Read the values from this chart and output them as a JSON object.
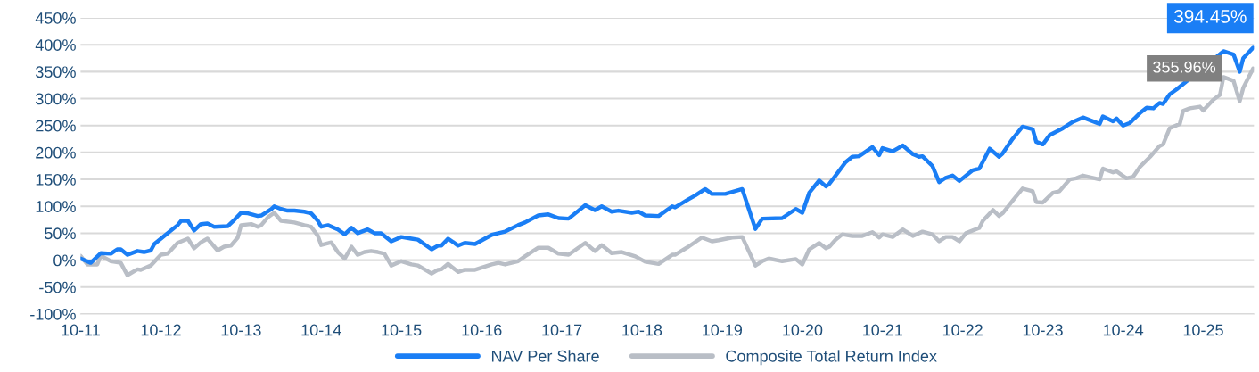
{
  "chart_data": {
    "type": "line",
    "series": [
      {
        "name": "NAV Per Share",
        "color": "#1a7ef5",
        "x": [
          "2011-10-01",
          "2011-11-16",
          "2012-01-01",
          "2012-02-16",
          "2012-03-16",
          "2012-04-01",
          "2012-05-01",
          "2012-06-16",
          "2012-07-16",
          "2012-08-16",
          "2012-09-01",
          "2012-10-16",
          "2012-12-16",
          "2013-01-01",
          "2013-02-01",
          "2013-03-01",
          "2013-04-01",
          "2013-05-01",
          "2013-06-01",
          "2013-08-01",
          "2013-09-01",
          "2013-10-01",
          "2013-11-01",
          "2013-12-16",
          "2014-01-01",
          "2014-02-16",
          "2014-03-01",
          "2014-04-01",
          "2014-05-01",
          "2014-06-01",
          "2014-07-16",
          "2014-08-16",
          "2014-09-16",
          "2014-10-01",
          "2014-11-01",
          "2014-12-16",
          "2015-01-16",
          "2015-02-16",
          "2015-03-16",
          "2015-05-01",
          "2015-06-01",
          "2015-07-01",
          "2015-08-16",
          "2015-10-01",
          "2015-11-16",
          "2015-12-16",
          "2016-02-16",
          "2016-03-16",
          "2016-04-01",
          "2016-05-01",
          "2016-06-16",
          "2016-07-16",
          "2016-09-01",
          "2016-11-16",
          "2016-12-16",
          "2017-01-16",
          "2017-03-16",
          "2017-04-16",
          "2017-06-16",
          "2017-08-01",
          "2017-09-16",
          "2017-11-01",
          "2018-01-16",
          "2018-03-01",
          "2018-04-01",
          "2018-05-16",
          "2018-06-16",
          "2018-08-16",
          "2018-09-16",
          "2018-10-16",
          "2018-12-16",
          "2019-02-16",
          "2019-03-01",
          "2019-05-01",
          "2019-06-01",
          "2019-07-16",
          "2019-08-16",
          "2019-10-16",
          "2020-01-01",
          "2020-03-01",
          "2020-04-01",
          "2020-07-01",
          "2020-09-01",
          "2020-10-01",
          "2020-11-01",
          "2020-12-16",
          "2021-01-16",
          "2021-02-01",
          "2021-03-01",
          "2021-04-16",
          "2021-05-16",
          "2021-06-16",
          "2021-08-16",
          "2021-09-16",
          "2021-10-01",
          "2021-11-16",
          "2022-01-01",
          "2022-02-16",
          "2022-03-16",
          "2022-04-01",
          "2022-05-16",
          "2022-06-16",
          "2022-07-16",
          "2022-08-16",
          "2022-09-16",
          "2022-11-16",
          "2022-12-16",
          "2023-02-01",
          "2023-03-16",
          "2023-04-01",
          "2023-05-16",
          "2023-07-01",
          "2023-08-16",
          "2023-09-01",
          "2023-10-01",
          "2023-11-01",
          "2024-01-01",
          "2024-02-16",
          "2024-04-01",
          "2024-06-16",
          "2024-07-01",
          "2024-08-16",
          "2024-09-01",
          "2024-10-01",
          "2024-11-01",
          "2024-12-16",
          "2025-01-16",
          "2025-02-16",
          "2025-03-16",
          "2025-04-01",
          "2025-05-01",
          "2025-06-01",
          "2025-07-16",
          "2025-10-01",
          "2026-01-01",
          "2026-02-16",
          "2026-03-16",
          "2026-04-01",
          "2026-05-16"
        ],
        "values": [
          3,
          -5,
          13,
          12,
          20,
          20,
          10,
          17,
          15,
          18,
          30,
          45,
          65,
          73,
          73,
          55,
          67,
          68,
          62,
          63,
          75,
          88,
          87,
          82,
          83,
          95,
          100,
          95,
          92,
          92,
          90,
          87,
          73,
          62,
          65,
          57,
          48,
          60,
          50,
          57,
          50,
          50,
          35,
          43,
          40,
          38,
          20,
          27,
          27,
          40,
          27,
          32,
          30,
          47,
          50,
          53,
          65,
          70,
          83,
          85,
          78,
          77,
          102,
          93,
          100,
          90,
          92,
          88,
          90,
          83,
          82,
          100,
          98,
          113,
          120,
          132,
          123,
          123,
          132,
          58,
          77,
          78,
          95,
          88,
          125,
          148,
          137,
          142,
          157,
          182,
          192,
          193,
          210,
          195,
          208,
          202,
          213,
          197,
          192,
          193,
          175,
          145,
          153,
          157,
          147,
          167,
          170,
          207,
          192,
          198,
          225,
          248,
          243,
          220,
          215,
          232,
          245,
          257,
          265,
          253,
          267,
          258,
          263,
          250,
          255,
          273,
          283,
          282,
          292,
          290,
          308,
          317,
          null,
          null,
          388,
          382,
          350,
          375,
          394.45
        ]
      },
      {
        "name": "Composite Total Return Index",
        "color": "#b9bec6",
        "x": [
          "2011-10-01",
          "2011-11-01",
          "2011-12-16",
          "2012-01-01",
          "2012-02-16",
          "2012-04-01",
          "2012-05-01",
          "2012-06-16",
          "2012-07-01",
          "2012-08-16",
          "2012-10-01",
          "2012-11-01",
          "2012-12-16",
          "2013-02-01",
          "2013-03-01",
          "2013-04-01",
          "2013-05-01",
          "2013-06-16",
          "2013-07-16",
          "2013-08-16",
          "2013-09-16",
          "2013-10-01",
          "2013-11-16",
          "2013-12-16",
          "2014-01-01",
          "2014-02-01",
          "2014-03-01",
          "2014-04-01",
          "2014-06-01",
          "2014-07-16",
          "2014-08-16",
          "2014-09-16",
          "2014-10-01",
          "2014-11-16",
          "2014-12-16",
          "2015-01-16",
          "2015-02-16",
          "2015-03-16",
          "2015-04-16",
          "2015-05-16",
          "2015-06-16",
          "2015-07-16",
          "2015-08-16",
          "2015-10-01",
          "2015-11-16",
          "2015-12-16",
          "2016-02-16",
          "2016-03-16",
          "2016-04-01",
          "2016-05-01",
          "2016-06-16",
          "2016-07-16",
          "2016-09-01",
          "2016-11-16",
          "2016-12-16",
          "2017-01-16",
          "2017-03-16",
          "2017-04-16",
          "2017-06-16",
          "2017-08-01",
          "2017-09-16",
          "2017-11-01",
          "2018-01-16",
          "2018-03-01",
          "2018-04-01",
          "2018-05-16",
          "2018-07-01",
          "2018-09-01",
          "2018-10-16",
          "2018-12-16",
          "2019-02-16",
          "2019-03-01",
          "2019-05-01",
          "2019-07-01",
          "2019-08-16",
          "2019-09-16",
          "2019-11-16",
          "2020-01-01",
          "2020-03-01",
          "2020-04-01",
          "2020-05-01",
          "2020-07-01",
          "2020-09-01",
          "2020-10-01",
          "2020-11-01",
          "2020-12-16",
          "2021-01-16",
          "2021-02-01",
          "2021-03-01",
          "2021-04-01",
          "2021-05-16",
          "2021-07-01",
          "2021-08-16",
          "2021-09-16",
          "2021-10-01",
          "2021-11-16",
          "2022-01-01",
          "2022-02-16",
          "2022-04-01",
          "2022-05-16",
          "2022-06-16",
          "2022-07-16",
          "2022-08-16",
          "2022-09-16",
          "2022-10-16",
          "2022-12-16",
          "2023-01-01",
          "2023-02-16",
          "2023-03-16",
          "2023-04-01",
          "2023-05-16",
          "2023-07-01",
          "2023-08-16",
          "2023-09-01",
          "2023-10-01",
          "2023-11-16",
          "2023-12-16",
          "2024-02-01",
          "2024-03-01",
          "2024-04-01",
          "2024-06-16",
          "2024-07-01",
          "2024-08-16",
          "2024-09-01",
          "2024-10-16",
          "2024-11-16",
          "2024-12-16",
          "2025-02-01",
          "2025-03-16",
          "2025-04-01",
          "2025-05-01",
          "2025-06-16",
          "2025-07-01",
          "2025-08-01",
          "2025-09-16",
          "2025-10-01",
          "2025-11-16",
          "2025-12-16",
          "2026-01-01",
          "2026-02-16",
          "2026-03-16",
          "2026-04-01",
          "2026-05-16"
        ],
        "values": [
          8,
          -8,
          -8,
          8,
          -2,
          -5,
          -28,
          -17,
          -18,
          -10,
          10,
          12,
          32,
          40,
          22,
          33,
          40,
          18,
          25,
          27,
          42,
          65,
          67,
          62,
          65,
          80,
          88,
          73,
          70,
          65,
          62,
          45,
          28,
          33,
          15,
          3,
          25,
          10,
          15,
          17,
          15,
          12,
          -10,
          -2,
          -8,
          -10,
          -25,
          -18,
          -17,
          -7,
          -22,
          -18,
          -18,
          -8,
          -5,
          -8,
          -2,
          7,
          23,
          23,
          12,
          10,
          32,
          17,
          28,
          13,
          15,
          7,
          -3,
          -7,
          10,
          10,
          25,
          42,
          35,
          37,
          42,
          43,
          -10,
          -2,
          3,
          -2,
          2,
          -8,
          20,
          32,
          22,
          25,
          38,
          48,
          45,
          45,
          52,
          42,
          48,
          43,
          57,
          45,
          53,
          48,
          35,
          43,
          43,
          35,
          50,
          60,
          73,
          93,
          82,
          87,
          110,
          133,
          128,
          108,
          107,
          125,
          128,
          150,
          152,
          157,
          150,
          170,
          163,
          165,
          152,
          155,
          173,
          192,
          212,
          215,
          245,
          253,
          277,
          282,
          285,
          278,
          298,
          307,
          340,
          333,
          295,
          320,
          355.96
        ]
      }
    ],
    "ylim": [
      -100,
      450
    ],
    "yticks": [
      {
        "value": -100,
        "label": "-100%"
      },
      {
        "value": -50,
        "label": "-50%"
      },
      {
        "value": 0,
        "label": "0%"
      },
      {
        "value": 50,
        "label": "50%"
      },
      {
        "value": 100,
        "label": "100%"
      },
      {
        "value": 150,
        "label": "150%"
      },
      {
        "value": 200,
        "label": "200%"
      },
      {
        "value": 250,
        "label": "250%"
      },
      {
        "value": 300,
        "label": "300%"
      },
      {
        "value": 350,
        "label": "350%"
      },
      {
        "value": 400,
        "label": "400%"
      },
      {
        "value": 450,
        "label": "450%"
      }
    ],
    "xlim": [
      "2011-10-01",
      "2026-05-20"
    ],
    "xticks": [
      {
        "value": "2011-10-01",
        "label": "10-11"
      },
      {
        "value": "2012-10-01",
        "label": "10-12"
      },
      {
        "value": "2013-10-01",
        "label": "10-13"
      },
      {
        "value": "2014-10-01",
        "label": "10-14"
      },
      {
        "value": "2015-10-01",
        "label": "10-15"
      },
      {
        "value": "2016-10-01",
        "label": "10-16"
      },
      {
        "value": "2017-10-01",
        "label": "10-17"
      },
      {
        "value": "2018-10-01",
        "label": "10-18"
      },
      {
        "value": "2019-10-01",
        "label": "10-19"
      },
      {
        "value": "2020-10-01",
        "label": "10-20"
      },
      {
        "value": "2021-10-01",
        "label": "10-21"
      },
      {
        "value": "2022-10-01",
        "label": "10-22"
      },
      {
        "value": "2023-10-01",
        "label": "10-23"
      },
      {
        "value": "2024-10-01",
        "label": "10-24"
      },
      {
        "value": "2025-10-01",
        "label": "10-25"
      }
    ],
    "annotations": [
      {
        "text": "394.45%",
        "x": "2026-05-16",
        "y": 394.45
      },
      {
        "text": "355.96%",
        "x": "2026-05-16",
        "y": 355.96
      }
    ],
    "grid": "y",
    "legend": "bottom",
    "marker": "none",
    "line_style": "solid"
  }
}
